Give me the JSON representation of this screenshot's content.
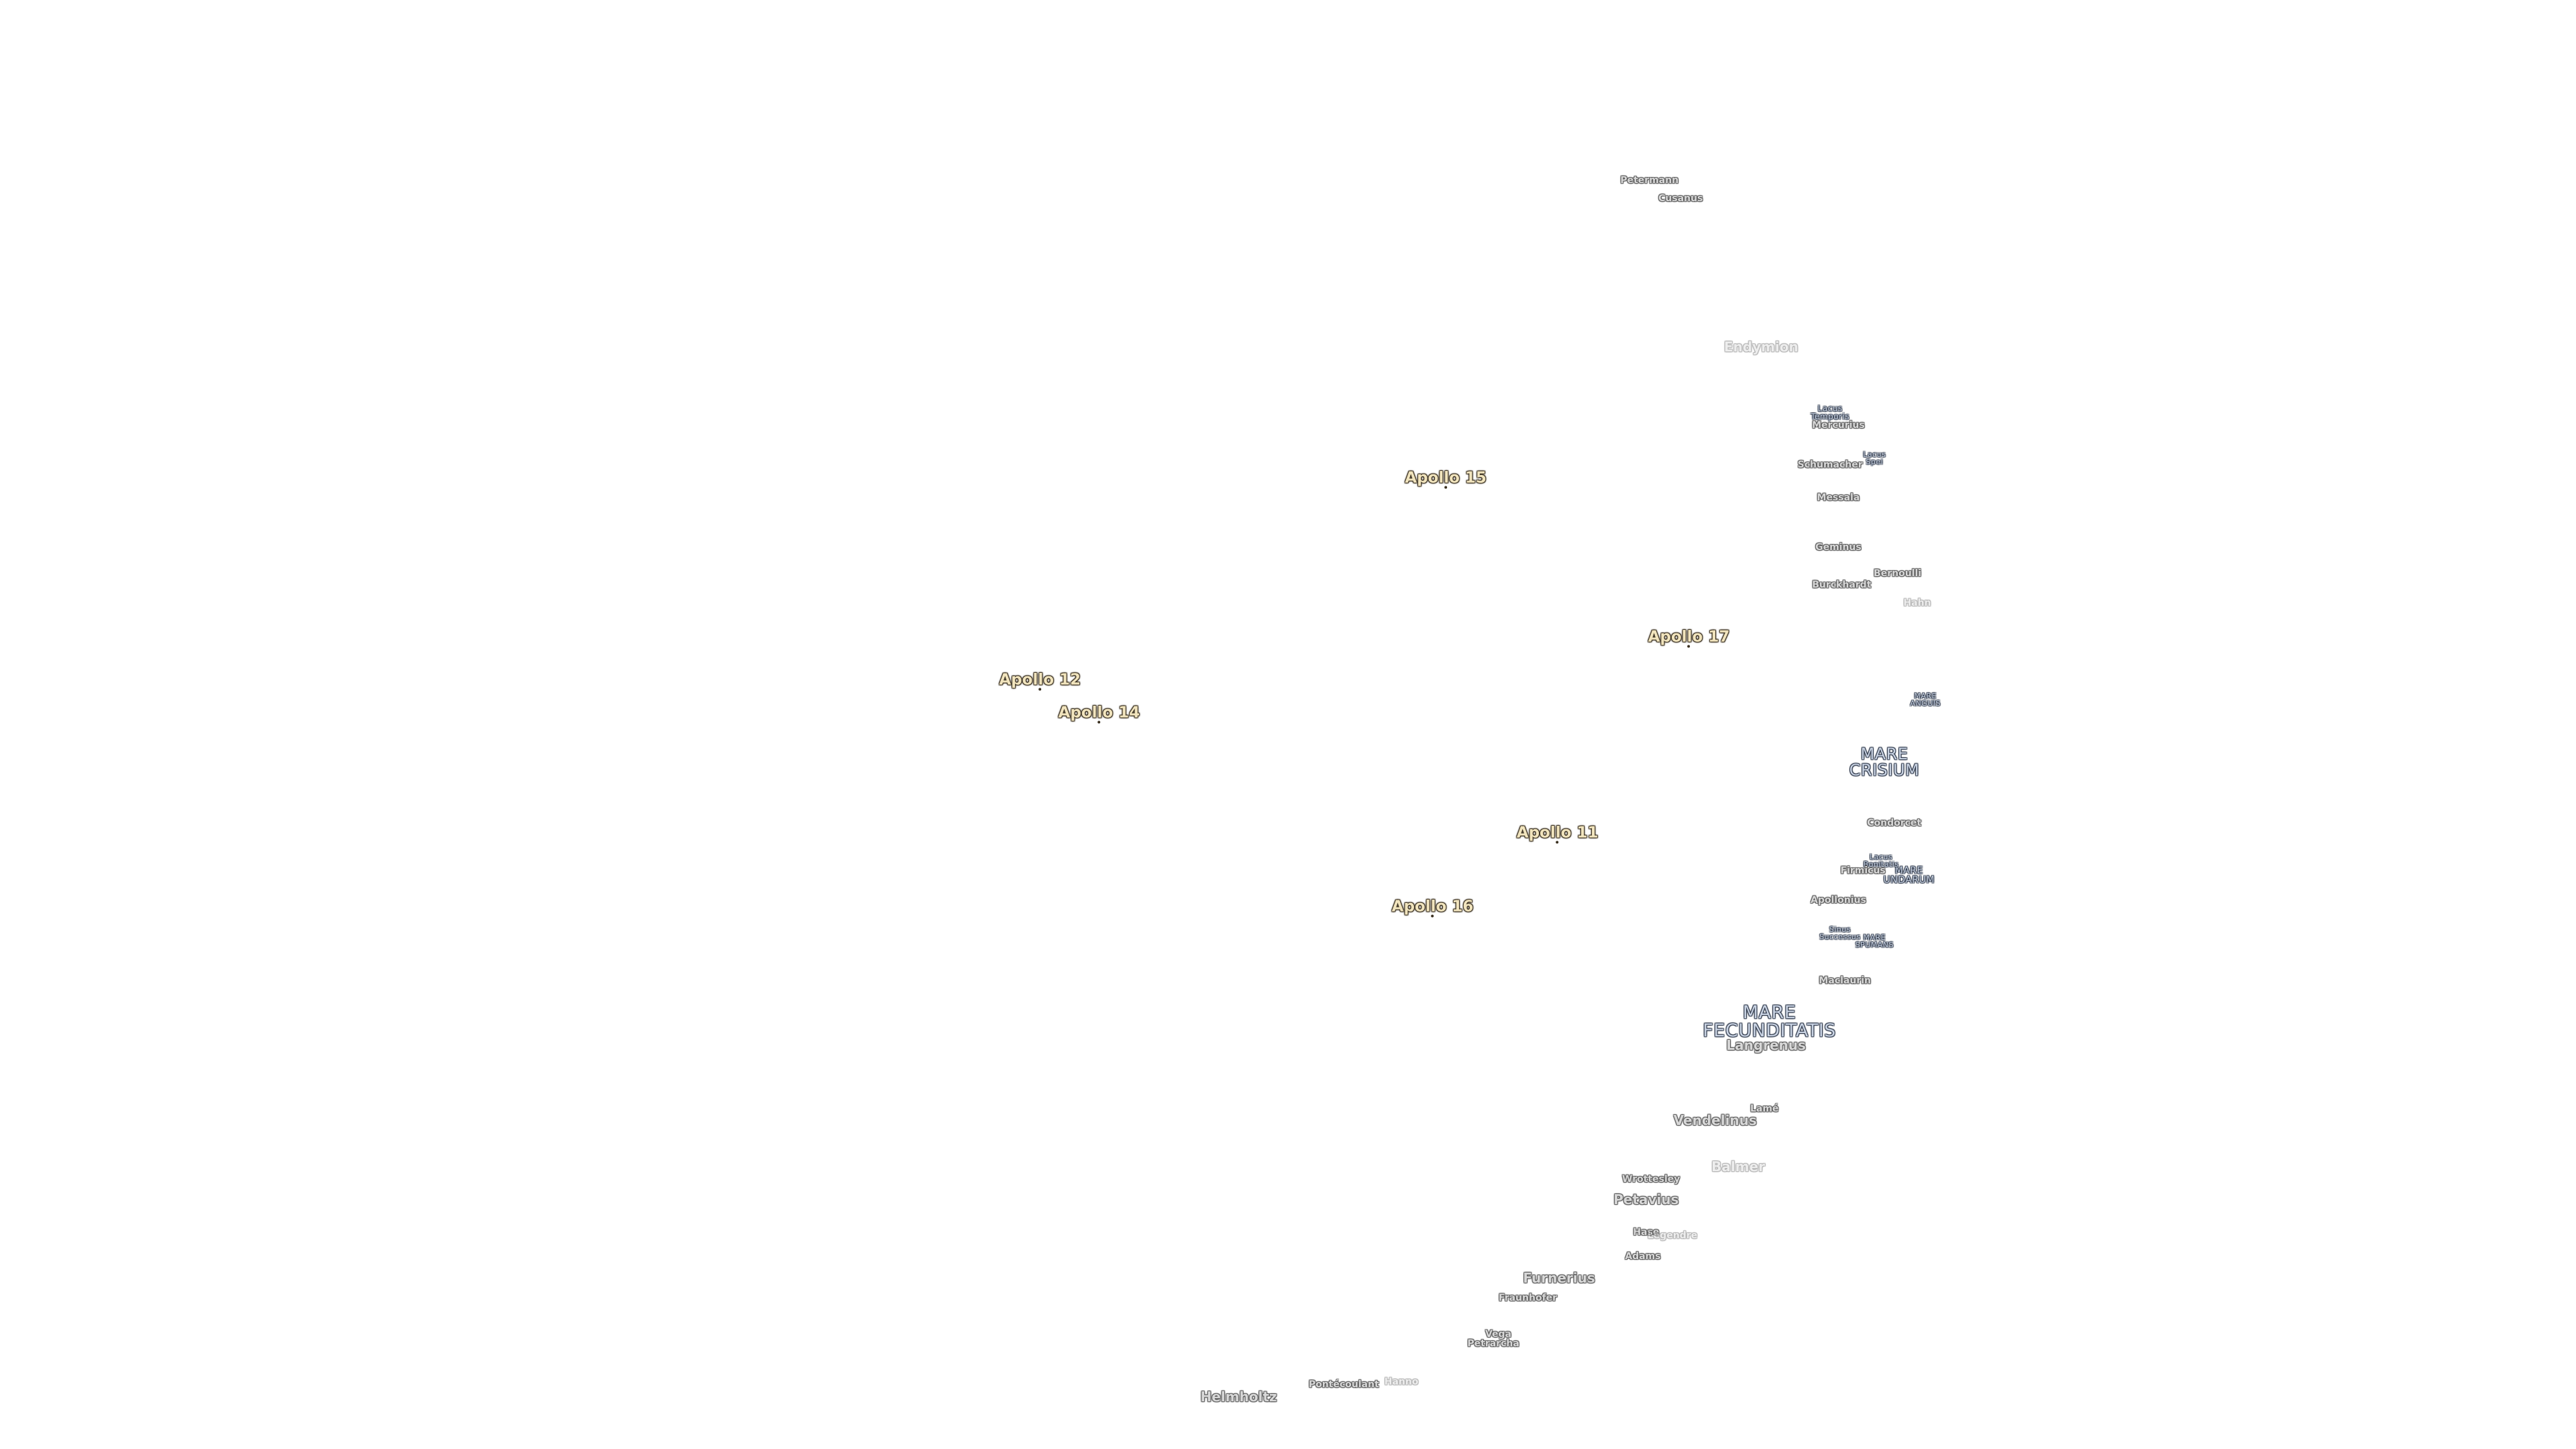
{
  "labels": {
    "apollo": [
      "Apollo 15",
      "Apollo 17",
      "Apollo 12",
      "Apollo 14",
      "Apollo 11",
      "Apollo 16"
    ],
    "maria": [
      [
        "MARE",
        "CRISIUM"
      ],
      [
        "MARE",
        "ANGUIS"
      ],
      [
        "MARE",
        "UNDARUM"
      ],
      [
        "MARE",
        "SPUMANS"
      ],
      [
        "MARE",
        "FECUNDITATIS"
      ],
      [
        "Lacus",
        "Temporis"
      ],
      [
        "Lacus",
        "Spei"
      ],
      [
        "Lacus",
        "Bonitatis"
      ],
      [
        "Sinus",
        "Successus"
      ]
    ],
    "craters": [
      "Petermann",
      "Cusanus",
      "Endymion",
      "Mercurius",
      "Schumacher",
      "Messala",
      "Geminus",
      "Bernoulli",
      "Burckhardt",
      "Hahn",
      "Condorcet",
      "Firmicus",
      "Apollonius",
      "Maclaurin",
      "Langrenus",
      "Lamé",
      "Vendelinus",
      "Balmer",
      "Wrottesley",
      "Petavius",
      "Hase",
      "Legendre",
      "Adams",
      "Furnerius",
      "Fraunhofer",
      "Vega",
      "Petrarcha",
      "Pontécoulant",
      "Hanno",
      "Helmholtz"
    ]
  }
}
